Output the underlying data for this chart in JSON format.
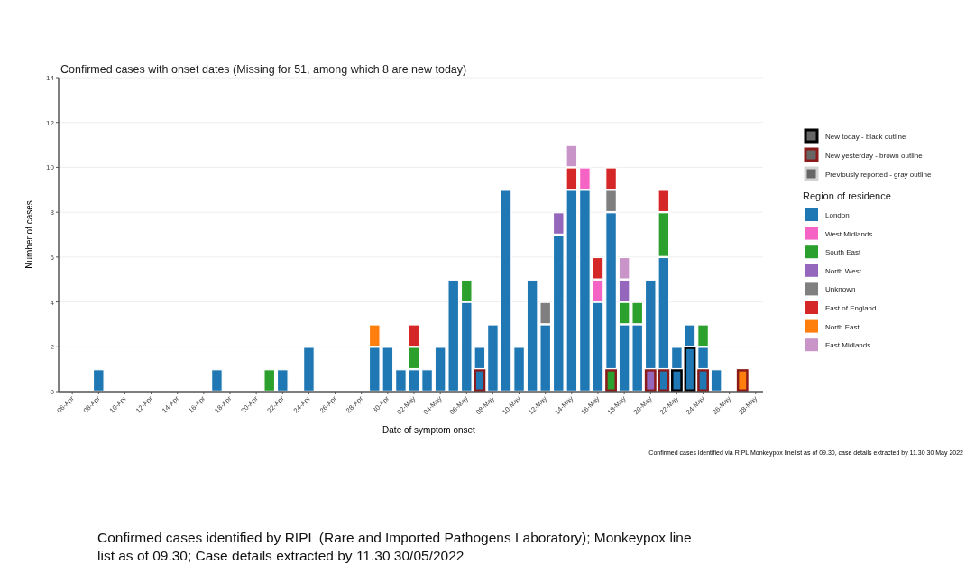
{
  "chart_data": {
    "type": "bar",
    "stacked": true,
    "title": "Confirmed cases with onset dates (Missing for 51, among which 8 are new today)",
    "xlabel": "Date of symptom onset",
    "ylabel": "Number of cases",
    "legend_title": "Region of residence",
    "categories": [
      "06-Apr",
      null,
      "08-Apr",
      null,
      "10-Apr",
      null,
      "12-Apr",
      null,
      "14-Apr",
      null,
      "16-Apr",
      null,
      "18-Apr",
      null,
      "20-Apr",
      null,
      "22-Apr",
      null,
      "24-Apr",
      null,
      "26-Apr",
      null,
      "28-Apr",
      null,
      "30-Apr",
      null,
      "02-May",
      null,
      "04-May",
      null,
      "06-May",
      null,
      "08-May",
      null,
      "10-May",
      null,
      "12-May",
      null,
      "14-May",
      null,
      "16-May",
      null,
      "18-May",
      null,
      "20-May",
      null,
      "22-May",
      null,
      "24-May",
      null,
      "26-May",
      null,
      "28-May"
    ],
    "series": [
      {
        "name": "New today - black outline",
        "color": "#000000",
        "colors": [
          null,
          null,
          null,
          null,
          null,
          null,
          null,
          null,
          null,
          null,
          null,
          null,
          null,
          null,
          null,
          null,
          null,
          null,
          null,
          null,
          null,
          null,
          null,
          null,
          null,
          null,
          null,
          null,
          null,
          null,
          null,
          null,
          null,
          null,
          null,
          null,
          null,
          null,
          null,
          null,
          null,
          null,
          null,
          null,
          null,
          null,
          "#1f77b4",
          "#1f77b4",
          null,
          null,
          null,
          null,
          null
        ],
        "values": [
          0,
          0,
          0,
          0,
          0,
          0,
          0,
          0,
          0,
          0,
          0,
          0,
          0,
          0,
          0,
          0,
          0,
          0,
          0,
          0,
          0,
          0,
          0,
          0,
          0,
          0,
          0,
          0,
          0,
          0,
          0,
          0,
          0,
          0,
          0,
          0,
          0,
          0,
          0,
          0,
          0,
          0,
          0,
          0,
          0,
          0,
          1,
          2,
          0,
          0,
          0,
          0,
          0
        ]
      },
      {
        "name": "New yesterday - brown outline",
        "color": "#8b1a1a",
        "colors": [
          null,
          null,
          null,
          null,
          null,
          null,
          null,
          null,
          null,
          null,
          null,
          null,
          null,
          null,
          null,
          null,
          null,
          null,
          null,
          null,
          null,
          null,
          null,
          null,
          null,
          null,
          null,
          null,
          null,
          null,
          null,
          "#1f77b4",
          null,
          null,
          null,
          null,
          null,
          null,
          null,
          null,
          null,
          "#2ca02c",
          null,
          null,
          "#9467bd",
          "#1f77b4",
          null,
          null,
          "#1f77b4",
          null,
          null,
          "#ff7f0e",
          null
        ],
        "values": [
          0,
          0,
          0,
          0,
          0,
          0,
          0,
          0,
          0,
          0,
          0,
          0,
          0,
          0,
          0,
          0,
          0,
          0,
          0,
          0,
          0,
          0,
          0,
          0,
          0,
          0,
          0,
          0,
          0,
          0,
          0,
          1,
          0,
          0,
          0,
          0,
          0,
          0,
          0,
          0,
          0,
          1,
          0,
          0,
          1,
          1,
          0,
          0,
          1,
          0,
          0,
          1,
          0
        ]
      },
      {
        "name": "Previously reported - gray outline",
        "color": "#d3d3d3",
        "values": [
          null,
          null,
          null,
          null,
          null,
          null,
          null,
          null,
          null,
          null,
          null,
          null,
          null,
          null,
          null,
          null,
          null,
          null,
          null,
          null,
          null,
          null,
          null,
          null,
          null,
          null,
          null,
          null,
          null,
          null,
          null,
          null,
          null,
          null,
          null,
          null,
          null,
          null,
          null,
          null,
          null,
          null,
          null,
          null,
          null,
          null,
          null,
          null,
          null,
          null,
          null,
          null,
          null
        ]
      },
      {
        "name": "London",
        "color": "#1f77b4",
        "values": [
          0,
          0,
          1,
          0,
          0,
          0,
          0,
          0,
          0,
          0,
          0,
          1,
          0,
          0,
          0,
          0,
          1,
          0,
          2,
          0,
          0,
          0,
          0,
          2,
          2,
          1,
          1,
          1,
          2,
          5,
          4,
          1,
          3,
          9,
          2,
          5,
          3,
          7,
          9,
          9,
          4,
          7,
          3,
          3,
          4,
          5,
          1,
          1,
          1,
          1,
          0,
          0,
          0
        ]
      },
      {
        "name": "West Midlands",
        "color": "#f564c4",
        "values": [
          0,
          0,
          0,
          0,
          0,
          0,
          0,
          0,
          0,
          0,
          0,
          0,
          0,
          0,
          0,
          0,
          0,
          0,
          0,
          0,
          0,
          0,
          0,
          0,
          0,
          0,
          0,
          0,
          0,
          0,
          0,
          0,
          0,
          0,
          0,
          0,
          0,
          0,
          0,
          1,
          1,
          0,
          0,
          0,
          0,
          0,
          0,
          0,
          0,
          0,
          0,
          0,
          0
        ]
      },
      {
        "name": "South East",
        "color": "#2ca02c",
        "values": [
          0,
          0,
          0,
          0,
          0,
          0,
          0,
          0,
          0,
          0,
          0,
          0,
          0,
          0,
          0,
          1,
          0,
          0,
          0,
          0,
          0,
          0,
          0,
          0,
          0,
          0,
          1,
          0,
          0,
          0,
          1,
          0,
          0,
          0,
          0,
          0,
          0,
          0,
          0,
          0,
          0,
          0,
          1,
          1,
          0,
          2,
          0,
          0,
          1,
          0,
          0,
          0,
          0
        ]
      },
      {
        "name": "North West",
        "color": "#9467bd",
        "values": [
          0,
          0,
          0,
          0,
          0,
          0,
          0,
          0,
          0,
          0,
          0,
          0,
          0,
          0,
          0,
          0,
          0,
          0,
          0,
          0,
          0,
          0,
          0,
          0,
          0,
          0,
          0,
          0,
          0,
          0,
          0,
          0,
          0,
          0,
          0,
          0,
          0,
          1,
          0,
          0,
          0,
          0,
          1,
          0,
          0,
          0,
          0,
          0,
          0,
          0,
          0,
          0,
          0
        ]
      },
      {
        "name": "Unknown",
        "color": "#7f7f7f",
        "values": [
          0,
          0,
          0,
          0,
          0,
          0,
          0,
          0,
          0,
          0,
          0,
          0,
          0,
          0,
          0,
          0,
          0,
          0,
          0,
          0,
          0,
          0,
          0,
          0,
          0,
          0,
          0,
          0,
          0,
          0,
          0,
          0,
          0,
          0,
          0,
          0,
          1,
          0,
          0,
          0,
          0,
          1,
          0,
          0,
          0,
          0,
          0,
          0,
          0,
          0,
          0,
          0,
          0
        ]
      },
      {
        "name": "East of England",
        "color": "#d62728",
        "values": [
          0,
          0,
          0,
          0,
          0,
          0,
          0,
          0,
          0,
          0,
          0,
          0,
          0,
          0,
          0,
          0,
          0,
          0,
          0,
          0,
          0,
          0,
          0,
          0,
          0,
          0,
          1,
          0,
          0,
          0,
          0,
          0,
          0,
          0,
          0,
          0,
          0,
          0,
          1,
          0,
          1,
          1,
          0,
          0,
          0,
          1,
          0,
          0,
          0,
          0,
          0,
          0,
          0
        ]
      },
      {
        "name": "North East",
        "color": "#ff7f0e",
        "values": [
          0,
          0,
          0,
          0,
          0,
          0,
          0,
          0,
          0,
          0,
          0,
          0,
          0,
          0,
          0,
          0,
          0,
          0,
          0,
          0,
          0,
          0,
          0,
          1,
          0,
          0,
          0,
          0,
          0,
          0,
          0,
          0,
          0,
          0,
          0,
          0,
          0,
          0,
          0,
          0,
          0,
          0,
          0,
          0,
          0,
          0,
          0,
          0,
          0,
          0,
          0,
          0,
          0
        ]
      },
      {
        "name": "East Midlands",
        "color": "#c994c7",
        "values": [
          0,
          0,
          0,
          0,
          0,
          0,
          0,
          0,
          0,
          0,
          0,
          0,
          0,
          0,
          0,
          0,
          0,
          0,
          0,
          0,
          0,
          0,
          0,
          0,
          0,
          0,
          0,
          0,
          0,
          0,
          0,
          0,
          0,
          0,
          0,
          0,
          0,
          0,
          1,
          0,
          0,
          0,
          1,
          0,
          0,
          0,
          0,
          0,
          0,
          0,
          0,
          0,
          0
        ]
      }
    ],
    "ylim": [
      0,
      14
    ],
    "yticks": [
      0,
      2,
      4,
      6,
      8,
      10,
      12,
      14
    ],
    "grid": "y",
    "legend": "right",
    "annotations": [
      "Confirmed cases identified via RIPL Monkeypox linelist as of 09.30, case details extracted by 11.30 30 May 2022",
      "Confirmed cases identified by RIPL (Rare and Imported Pathogens Laboratory); Monkeypox line list as of 09.30; Case details extracted by 11.30 30/05/2022"
    ]
  }
}
